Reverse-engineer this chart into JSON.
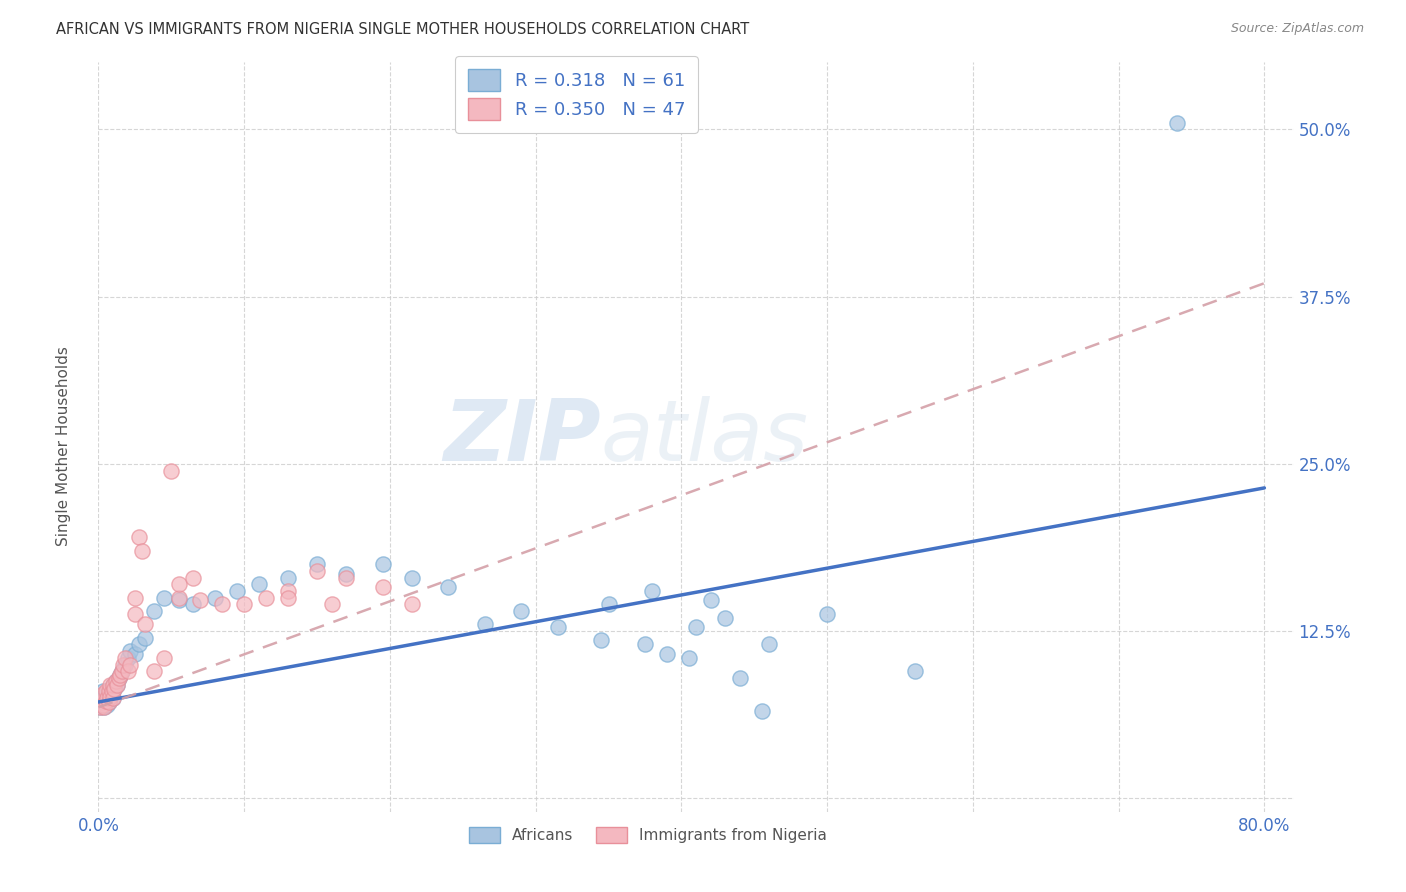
{
  "title": "AFRICAN VS IMMIGRANTS FROM NIGERIA SINGLE MOTHER HOUSEHOLDS CORRELATION CHART",
  "source": "Source: ZipAtlas.com",
  "ylabel": "Single Mother Households",
  "xlim": [
    0.0,
    0.82
  ],
  "ylim": [
    -0.01,
    0.55
  ],
  "yticks": [
    0.0,
    0.125,
    0.25,
    0.375,
    0.5
  ],
  "yticklabels": [
    "",
    "12.5%",
    "25.0%",
    "37.5%",
    "50.0%"
  ],
  "xtick_positions": [
    0.0,
    0.1,
    0.2,
    0.3,
    0.4,
    0.5,
    0.6,
    0.7,
    0.8
  ],
  "xticklabels": [
    "0.0%",
    "",
    "",
    "",
    "",
    "",
    "",
    "",
    "80.0%"
  ],
  "africans_R": 0.318,
  "africans_N": 61,
  "nigeria_R": 0.35,
  "nigeria_N": 47,
  "africans_color": "#a8c4e0",
  "africans_edge_color": "#7aadd4",
  "nigeria_color": "#f4b8c0",
  "nigeria_edge_color": "#e8909a",
  "africans_line_color": "#4472c4",
  "nigeria_line_color": "#d4a0a8",
  "background_color": "#ffffff",
  "grid_color": "#cccccc",
  "watermark_color": "#d0dff0",
  "title_color": "#333333",
  "source_color": "#888888",
  "tick_color": "#4472c4",
  "ylabel_color": "#555555",
  "africans_x": [
    0.001,
    0.002,
    0.002,
    0.003,
    0.003,
    0.004,
    0.004,
    0.005,
    0.005,
    0.006,
    0.006,
    0.007,
    0.007,
    0.008,
    0.008,
    0.009,
    0.01,
    0.01,
    0.011,
    0.012,
    0.013,
    0.014,
    0.015,
    0.016,
    0.018,
    0.02,
    0.022,
    0.025,
    0.028,
    0.032,
    0.038,
    0.045,
    0.055,
    0.065,
    0.08,
    0.095,
    0.11,
    0.13,
    0.15,
    0.17,
    0.195,
    0.215,
    0.24,
    0.265,
    0.29,
    0.315,
    0.345,
    0.375,
    0.405,
    0.44,
    0.35,
    0.38,
    0.42,
    0.46,
    0.39,
    0.41,
    0.43,
    0.455,
    0.5,
    0.56,
    0.74
  ],
  "africans_y": [
    0.068,
    0.072,
    0.075,
    0.07,
    0.08,
    0.068,
    0.075,
    0.073,
    0.078,
    0.07,
    0.076,
    0.072,
    0.08,
    0.076,
    0.082,
    0.078,
    0.075,
    0.085,
    0.082,
    0.088,
    0.085,
    0.09,
    0.092,
    0.095,
    0.1,
    0.105,
    0.11,
    0.108,
    0.115,
    0.12,
    0.14,
    0.15,
    0.148,
    0.145,
    0.15,
    0.155,
    0.16,
    0.165,
    0.175,
    0.168,
    0.175,
    0.165,
    0.158,
    0.13,
    0.14,
    0.128,
    0.118,
    0.115,
    0.105,
    0.09,
    0.145,
    0.155,
    0.148,
    0.115,
    0.108,
    0.128,
    0.135,
    0.065,
    0.138,
    0.095,
    0.505
  ],
  "nigeria_x": [
    0.001,
    0.002,
    0.003,
    0.003,
    0.004,
    0.005,
    0.005,
    0.006,
    0.007,
    0.007,
    0.008,
    0.008,
    0.009,
    0.01,
    0.01,
    0.011,
    0.012,
    0.013,
    0.014,
    0.015,
    0.016,
    0.017,
    0.018,
    0.02,
    0.022,
    0.025,
    0.028,
    0.032,
    0.038,
    0.045,
    0.055,
    0.07,
    0.085,
    0.1,
    0.115,
    0.13,
    0.15,
    0.17,
    0.195,
    0.215,
    0.055,
    0.065,
    0.13,
    0.16,
    0.05,
    0.03,
    0.025
  ],
  "nigeria_y": [
    0.068,
    0.072,
    0.07,
    0.078,
    0.068,
    0.073,
    0.08,
    0.075,
    0.072,
    0.08,
    0.076,
    0.085,
    0.08,
    0.075,
    0.085,
    0.082,
    0.088,
    0.085,
    0.09,
    0.092,
    0.095,
    0.1,
    0.105,
    0.095,
    0.1,
    0.138,
    0.195,
    0.13,
    0.095,
    0.105,
    0.15,
    0.148,
    0.145,
    0.145,
    0.15,
    0.155,
    0.17,
    0.165,
    0.158,
    0.145,
    0.16,
    0.165,
    0.15,
    0.145,
    0.245,
    0.185,
    0.15
  ],
  "africans_line_y0": 0.072,
  "africans_line_y1": 0.232,
  "nigeria_line_y0": 0.068,
  "nigeria_line_y1": 0.385
}
